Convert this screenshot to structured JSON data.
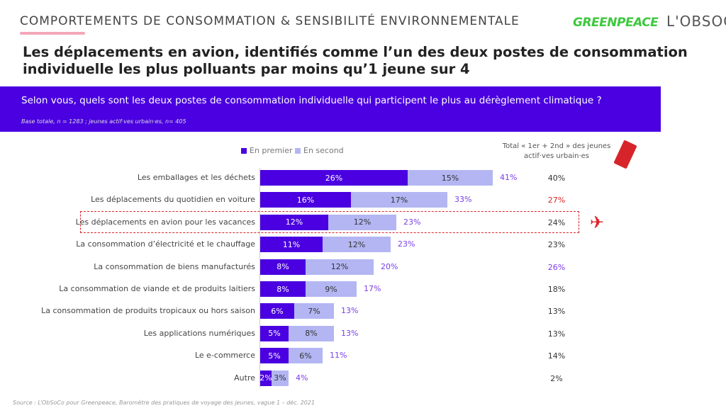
{
  "header": {
    "kicker": "COMPORTEMENTS DE CONSOMMATION & SENSIBILITÉ ENVIRONNEMENTALE",
    "logo_greenpeace": "GREENPEACE",
    "logo_obsoco": "L'OBSOCO",
    "title": "Les déplacements en avion, identifiés comme l’un des deux postes de consommation individuelle les plus polluants par moins qu’1 jeune sur 4"
  },
  "banner": {
    "question": "Selon vous, quels sont les deux postes de consommation individuelle qui participent le plus au dérèglement climatique ?",
    "base": "Base totale, n = 1283 ; jeunes actif·ves urbain·es, n= 405"
  },
  "right_header": "Total « 1er + 2nd » des jeunes actif·ves urbain·es",
  "source": "Source : L’ObSoCo pour Greenpeace, Baromètre des pratiques de voyage des jeunes, vague 1 – déc. 2021",
  "colors": {
    "first": "#4a00e0",
    "second": "#b3b6f2",
    "highlight": "#d7242b",
    "total": "#7a3ee8"
  },
  "chart_data": {
    "type": "bar",
    "orientation": "horizontal",
    "stacked": true,
    "legend": [
      "En premier",
      "En second"
    ],
    "legend_position": "top",
    "categories": [
      "Les emballages et les déchets",
      "Les déplacements du quotidien en voiture",
      "Les déplacements en avion pour les vacances",
      "La consommation d’électricité et le chauffage",
      "La consommation de biens manufacturés",
      "La consommation de viande et de produits laitiers",
      "La consommation de produits tropicaux ou hors saison",
      "Les applications numériques",
      "Le e-commerce",
      "Autre"
    ],
    "series": [
      {
        "name": "En premier",
        "values": [
          26,
          16,
          12,
          11,
          8,
          8,
          6,
          5,
          5,
          2
        ]
      },
      {
        "name": "En second",
        "values": [
          15,
          17,
          12,
          12,
          12,
          9,
          7,
          8,
          6,
          3
        ]
      }
    ],
    "totals": [
      41,
      33,
      23,
      23,
      20,
      17,
      13,
      13,
      11,
      4
    ],
    "young_urban_totals": [
      40,
      27,
      24,
      23,
      26,
      18,
      13,
      13,
      14,
      2
    ],
    "young_urban_colors": [
      "#333",
      "#d7242b",
      "#333",
      "#333",
      "#7a3ee8",
      "#333",
      "#333",
      "#333",
      "#333",
      "#333"
    ],
    "highlighted_category": "Les déplacements en avion pour les vacances"
  }
}
